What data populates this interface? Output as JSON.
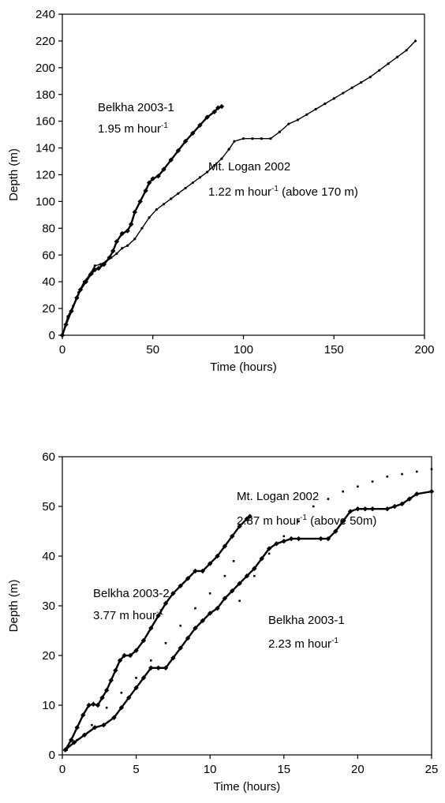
{
  "chart_data": [
    {
      "type": "scatter",
      "xlabel": "Time (hours)",
      "ylabel": "Depth (m)",
      "xlim": [
        0,
        200
      ],
      "ylim": [
        0,
        240
      ],
      "xticks": [
        "0",
        "50",
        "100",
        "150",
        "200"
      ],
      "yticks": [
        "0",
        "20",
        "40",
        "60",
        "80",
        "100",
        "120",
        "140",
        "160",
        "180",
        "200",
        "220",
        "240"
      ],
      "grid": false,
      "annotations": [
        {
          "name": "Belkha 2003-1",
          "rate_prefix": "1.95 m hour",
          "rate_sup": "-1",
          "rate_suffix": ""
        },
        {
          "name": "Mt. Logan 2002",
          "rate_prefix": "1.22 m hour",
          "rate_sup": "-1",
          "rate_suffix": " (above 170 m)"
        }
      ],
      "series": [
        {
          "name": "Belkha 2003-1",
          "x": [
            0,
            2,
            5,
            8,
            10,
            13,
            16,
            18,
            20,
            23,
            26,
            28,
            30,
            33,
            36,
            38,
            40,
            43,
            46,
            48,
            50,
            53,
            56,
            60,
            64,
            68,
            72,
            76,
            80,
            84,
            86,
            88
          ],
          "y": [
            0,
            8,
            18,
            28,
            34,
            40,
            46,
            49,
            50,
            53,
            58,
            63,
            70,
            76,
            78,
            83,
            92,
            100,
            108,
            114,
            117,
            119,
            124,
            131,
            138,
            145,
            151,
            157,
            163,
            167,
            170,
            171
          ]
        },
        {
          "name": "Mt. Logan 2002",
          "x": [
            0,
            3,
            6,
            9,
            12,
            15,
            18,
            21,
            24,
            27,
            30,
            33,
            36,
            40,
            44,
            48,
            52,
            56,
            60,
            64,
            68,
            72,
            76,
            80,
            84,
            88,
            92,
            95,
            100,
            105,
            110,
            115,
            120,
            125,
            130,
            135,
            140,
            145,
            150,
            155,
            160,
            165,
            170,
            175,
            180,
            185,
            190,
            195
          ],
          "y": [
            0,
            14,
            22,
            32,
            40,
            45,
            52,
            53,
            55,
            58,
            61,
            65,
            67,
            72,
            80,
            88,
            94,
            98,
            102,
            106,
            110,
            114,
            118,
            122,
            127,
            132,
            139,
            145,
            147,
            147,
            147,
            147,
            152,
            158,
            161,
            165,
            169,
            173,
            177,
            181,
            185,
            189,
            193,
            198,
            203,
            208,
            213,
            220
          ]
        }
      ]
    },
    {
      "type": "scatter",
      "xlabel": "Time (hours)",
      "ylabel": "Depth (m)",
      "xlim": [
        0,
        25
      ],
      "ylim": [
        0,
        60
      ],
      "xticks": [
        "0",
        "5",
        "10",
        "15",
        "20",
        "25"
      ],
      "yticks": [
        "0",
        "10",
        "20",
        "30",
        "40",
        "50",
        "60"
      ],
      "grid": false,
      "annotations": [
        {
          "name": "Mt. Logan 2002",
          "rate_prefix": "2.87 m hour",
          "rate_sup": "-1",
          "rate_suffix": " (above 50m)"
        },
        {
          "name": "Belkha 2003-2",
          "rate_prefix": "3.77 m hour",
          "rate_sup": "-1",
          "rate_suffix": ""
        },
        {
          "name": "Belkha 2003-1",
          "rate_prefix": "2.23 m hour",
          "rate_sup": "-1",
          "rate_suffix": ""
        }
      ],
      "series": [
        {
          "name": "Belkha 2003-2",
          "x": [
            0.2,
            0.6,
            1.0,
            1.4,
            1.8,
            2.1,
            2.4,
            2.7,
            3.0,
            3.3,
            3.6,
            3.9,
            4.2,
            4.6,
            5.0,
            5.5,
            6.0,
            6.5,
            7.0,
            7.5,
            8.0,
            8.5,
            9.0,
            9.5,
            10.0,
            10.5,
            11.0,
            11.5,
            12.0,
            12.5,
            12.7
          ],
          "y": [
            1.0,
            3.0,
            5.5,
            8.0,
            10.0,
            10.2,
            10.0,
            11.5,
            13.0,
            15.0,
            17.0,
            19.0,
            20.0,
            20.0,
            21.0,
            23.0,
            25.5,
            28.0,
            30.5,
            32.5,
            34.0,
            35.5,
            37.0,
            37.0,
            38.5,
            40.0,
            42.0,
            44.0,
            46.0,
            47.5,
            48.0
          ]
        },
        {
          "name": "Mt. Logan 2002",
          "x": [
            0.3,
            1.0,
            2.0,
            3.0,
            4.0,
            5.0,
            6.0,
            7.0,
            8.0,
            9.0,
            10.0,
            11.0,
            11.6,
            12.0,
            13.0,
            14.0,
            15.0,
            16.0,
            17.0,
            18.0,
            19.0,
            20.0,
            21.0,
            22.0,
            23.0,
            24.0,
            25.0
          ],
          "y": [
            1.0,
            3.0,
            6.0,
            9.5,
            12.5,
            15.5,
            19.0,
            22.5,
            26.0,
            29.5,
            32.5,
            36.0,
            39.0,
            31.0,
            36.0,
            40.5,
            44.0,
            47.0,
            50.0,
            51.5,
            53.0,
            54.0,
            55.0,
            56.0,
            56.5,
            57.0,
            57.5
          ]
        },
        {
          "name": "Belkha 2003-1",
          "x": [
            0.2,
            0.8,
            1.5,
            2.2,
            2.8,
            3.5,
            4.0,
            4.5,
            5.0,
            5.5,
            6.0,
            6.5,
            7.0,
            7.5,
            8.0,
            8.5,
            9.0,
            9.5,
            10.0,
            10.5,
            11.0,
            11.5,
            12.0,
            12.5,
            13.0,
            13.5,
            14.0,
            14.5,
            15.0,
            15.5,
            16.0,
            17.5,
            18.0,
            18.5,
            19.0,
            19.5,
            20.0,
            20.5,
            21.0,
            22.0,
            22.5,
            23.0,
            23.5,
            24.0,
            25.0
          ],
          "y": [
            1.0,
            2.5,
            4.0,
            5.5,
            6.0,
            7.5,
            9.5,
            11.5,
            13.5,
            15.5,
            17.5,
            17.5,
            17.5,
            19.5,
            21.5,
            23.5,
            25.5,
            27.0,
            28.5,
            29.5,
            31.5,
            33.0,
            34.5,
            36.0,
            37.5,
            39.5,
            41.5,
            42.5,
            43.0,
            43.5,
            43.5,
            43.5,
            43.5,
            45.0,
            47.0,
            49.0,
            49.5,
            49.5,
            49.5,
            49.5,
            50.0,
            50.5,
            51.5,
            52.5,
            53.0
          ]
        }
      ]
    }
  ]
}
